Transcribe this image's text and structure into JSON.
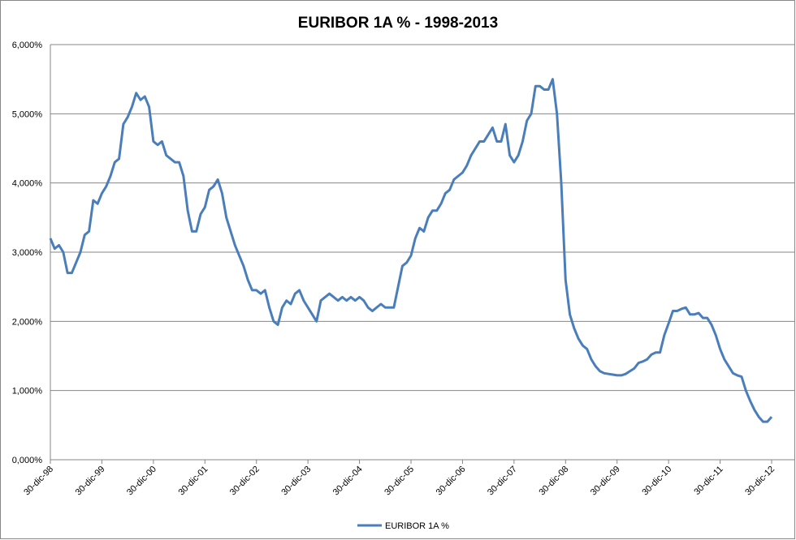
{
  "chart_data": {
    "type": "line",
    "title": "EURIBOR 1A % - 1998-2013",
    "categories": [
      "30-dic-98",
      null,
      null,
      null,
      null,
      null,
      null,
      null,
      null,
      null,
      null,
      null,
      "30-dic-99",
      null,
      null,
      null,
      null,
      null,
      null,
      null,
      null,
      null,
      null,
      null,
      "30-dic-00",
      null,
      null,
      null,
      null,
      null,
      null,
      null,
      null,
      null,
      null,
      null,
      "30-dic-01",
      null,
      null,
      null,
      null,
      null,
      null,
      null,
      null,
      null,
      null,
      null,
      "30-dic-02",
      null,
      null,
      null,
      null,
      null,
      null,
      null,
      null,
      null,
      null,
      null,
      "30-dic-03",
      null,
      null,
      null,
      null,
      null,
      null,
      null,
      null,
      null,
      null,
      null,
      "30-dic-04",
      null,
      null,
      null,
      null,
      null,
      null,
      null,
      null,
      null,
      null,
      null,
      "30-dic-05",
      null,
      null,
      null,
      null,
      null,
      null,
      null,
      null,
      null,
      null,
      null,
      "30-dic-06",
      null,
      null,
      null,
      null,
      null,
      null,
      null,
      null,
      null,
      null,
      null,
      "30-dic-07",
      null,
      null,
      null,
      null,
      null,
      null,
      null,
      null,
      null,
      null,
      null,
      "30-dic-08",
      null,
      null,
      null,
      null,
      null,
      null,
      null,
      null,
      null,
      null,
      null,
      "30-dic-09",
      null,
      null,
      null,
      null,
      null,
      null,
      null,
      null,
      null,
      null,
      null,
      "30-dic-10",
      null,
      null,
      null,
      null,
      null,
      null,
      null,
      null,
      null,
      null,
      null,
      "30-dic-11",
      null,
      null,
      null,
      null,
      null,
      null,
      null,
      null,
      null,
      null,
      null,
      "30-dic-12"
    ],
    "series": [
      {
        "name": "EURIBOR 1A %",
        "color": "#4a7ebb",
        "values": [
          3.2,
          3.05,
          3.1,
          3.0,
          2.7,
          2.7,
          2.85,
          3.0,
          3.25,
          3.3,
          3.75,
          3.7,
          3.85,
          3.95,
          4.1,
          4.3,
          4.35,
          4.85,
          4.95,
          5.1,
          5.3,
          5.2,
          5.25,
          5.1,
          4.6,
          4.55,
          4.6,
          4.4,
          4.35,
          4.3,
          4.3,
          4.1,
          3.6,
          3.3,
          3.3,
          3.55,
          3.65,
          3.9,
          3.95,
          4.05,
          3.85,
          3.5,
          3.3,
          3.1,
          2.95,
          2.8,
          2.6,
          2.45,
          2.45,
          2.4,
          2.45,
          2.2,
          2.0,
          1.95,
          2.2,
          2.3,
          2.25,
          2.4,
          2.45,
          2.3,
          2.2,
          2.1,
          2.0,
          2.3,
          2.35,
          2.4,
          2.35,
          2.3,
          2.35,
          2.3,
          2.35,
          2.3,
          2.35,
          2.3,
          2.2,
          2.15,
          2.2,
          2.25,
          2.2,
          2.2,
          2.2,
          2.5,
          2.8,
          2.85,
          2.95,
          3.2,
          3.35,
          3.3,
          3.5,
          3.6,
          3.6,
          3.7,
          3.85,
          3.9,
          4.05,
          4.1,
          4.15,
          4.25,
          4.4,
          4.5,
          4.6,
          4.6,
          4.7,
          4.8,
          4.6,
          4.6,
          4.85,
          4.4,
          4.3,
          4.4,
          4.6,
          4.9,
          5.0,
          5.4,
          5.4,
          5.35,
          5.35,
          5.5,
          5.0,
          4.0,
          2.6,
          2.1,
          1.9,
          1.75,
          1.65,
          1.6,
          1.45,
          1.35,
          1.28,
          1.25,
          1.24,
          1.23,
          1.22,
          1.22,
          1.24,
          1.28,
          1.32,
          1.4,
          1.42,
          1.45,
          1.52,
          1.55,
          1.55,
          1.8,
          1.97,
          2.15,
          2.15,
          2.18,
          2.2,
          2.1,
          2.1,
          2.12,
          2.05,
          2.05,
          1.95,
          1.8,
          1.6,
          1.45,
          1.35,
          1.25,
          1.22,
          1.2,
          1.0,
          0.85,
          0.72,
          0.62,
          0.55,
          0.55,
          0.62
        ]
      }
    ],
    "ylim": [
      0,
      6
    ],
    "yticks": [
      {
        "value": 0,
        "label": "0,000%"
      },
      {
        "value": 1,
        "label": "1,000%"
      },
      {
        "value": 2,
        "label": "2,000%"
      },
      {
        "value": 3,
        "label": "3,000%"
      },
      {
        "value": 4,
        "label": "4,000%"
      },
      {
        "value": 5,
        "label": "5,000%"
      },
      {
        "value": 6,
        "label": "6,000%"
      }
    ],
    "grid": true,
    "legend": "bottom"
  }
}
